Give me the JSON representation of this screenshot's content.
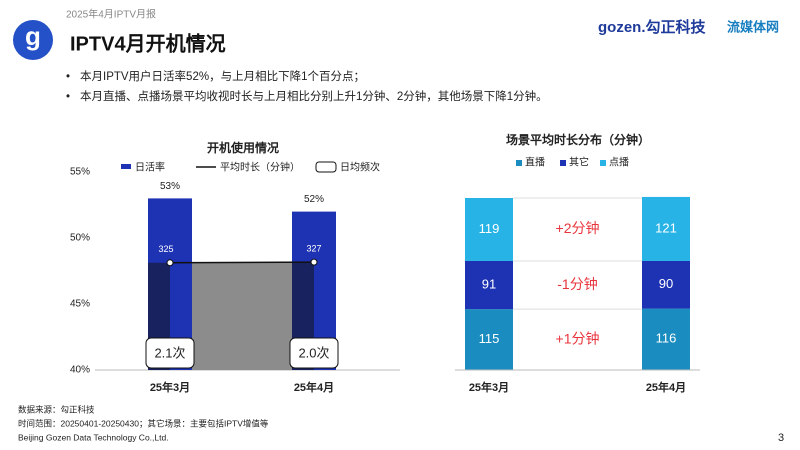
{
  "header": {
    "report": "2025年4月IPTV月报",
    "title": "IPTV4月开机情况",
    "logo_brand": "gozen.勾正科技",
    "logo_partner": "流媒体网"
  },
  "bullets": [
    "本月IPTV用户日活率52%，与上月相比下降1个百分点；",
    "本月直播、点播场景平均收视时长与上月相比分别上升1分钟、2分钟，其他场景下降1分钟。"
  ],
  "chart_data": [
    {
      "type": "bar",
      "title": "开机使用情况",
      "categories": [
        "25年3月",
        "25年4月"
      ],
      "ylim": [
        40,
        55
      ],
      "yticks": [
        {
          "value": 40,
          "label": "40%"
        },
        {
          "value": 45,
          "label": "45%"
        },
        {
          "value": 50,
          "label": "50%"
        },
        {
          "value": 55,
          "label": "55%"
        }
      ],
      "y2lim": [
        0,
        600
      ],
      "series": [
        {
          "name": "日活率",
          "type": "bar",
          "color": "#1e32b4",
          "values": [
            53,
            52
          ],
          "value_labels": [
            "53%",
            "52%"
          ]
        },
        {
          "name": "平均时长（分钟）",
          "type": "line",
          "axis": "y2",
          "color": "#111111",
          "values": [
            325,
            327
          ]
        },
        {
          "name": "日均频次",
          "type": "box",
          "color": "#111111",
          "values": [
            2.1,
            2.0
          ],
          "value_labels": [
            "2.1次",
            "2.0次"
          ]
        }
      ]
    },
    {
      "type": "stacked_bar",
      "title": "场景平均时长分布（分钟）",
      "categories": [
        "25年3月",
        "25年4月"
      ],
      "ylim": [
        0,
        325
      ],
      "series": [
        {
          "name": "直播",
          "color": "#1a8cc0",
          "values": [
            115,
            116
          ]
        },
        {
          "name": "其它",
          "color": "#1e32b4",
          "values": [
            91,
            90
          ]
        },
        {
          "name": "点播",
          "color": "#27b3e6",
          "values": [
            119,
            121
          ]
        }
      ],
      "annotations": [
        "+1分钟",
        "-1分钟",
        "+2分钟"
      ]
    }
  ],
  "footer": {
    "source": "数据来源：勾正科技",
    "range": "时间范围：20250401-20250430；其它场景：主要包括IPTV增值等",
    "company": "Beijing Gozen Data Technology Co.,Ltd.",
    "page": "3"
  }
}
